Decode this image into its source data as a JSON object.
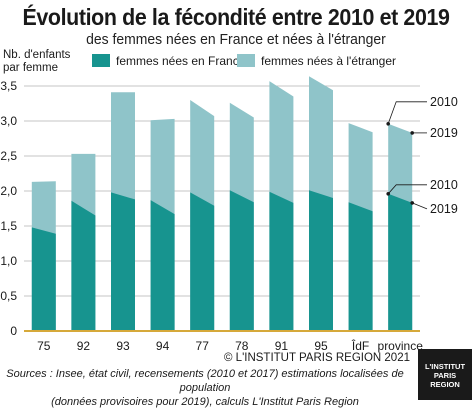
{
  "title": "Évolution de la fécondité entre 2010 et 2019",
  "subtitle": "des femmes nées en France et nées à l'étranger",
  "copyright": "© L'INSTITUT PARIS REGION 2021",
  "sources_line1": "Sources : Insee, état civil, recensements (2010 et 2017) estimations localisées de population",
  "sources_line2": "(données provisoires pour 2019), calculs L'Institut Paris Region",
  "logo": {
    "line1": "L'INSTITUT",
    "line2": "PARIS",
    "line3": "REGION"
  },
  "colors": {
    "france": "#17948f",
    "etranger": "#8fc4c9",
    "axis": "#d6a93a",
    "grid": "#b0b0b0"
  },
  "chart_data": {
    "type": "bar",
    "stacked": true,
    "ylabel": "Nb. d'enfants par femme",
    "ylim": [
      0,
      3.5
    ],
    "yticks": [
      0,
      0.5,
      1.0,
      1.5,
      2.0,
      2.5,
      3.0,
      3.5
    ],
    "ytick_labels": [
      "0",
      "0,5",
      "1,0",
      "1,5",
      "2,0",
      "2,5",
      "3,0",
      "3,5"
    ],
    "grid": true,
    "legend_position": "top",
    "categories": [
      "75",
      "92",
      "93",
      "94",
      "77",
      "78",
      "91",
      "95",
      "ÎdF",
      "province"
    ],
    "series": [
      {
        "name": "femmes nées en France",
        "values_2010": [
          1.48,
          1.86,
          1.98,
          1.87,
          1.98,
          2.01,
          1.99,
          2.01,
          1.84,
          1.96
        ],
        "values_2019": [
          1.39,
          1.65,
          1.88,
          1.67,
          1.79,
          1.84,
          1.83,
          1.9,
          1.71,
          1.83
        ]
      },
      {
        "name": "femmes nées à l'étranger",
        "values_2010": [
          2.13,
          2.53,
          3.41,
          3.01,
          3.3,
          3.26,
          3.57,
          3.64,
          2.97,
          2.96
        ],
        "values_2019": [
          2.14,
          2.53,
          3.41,
          3.03,
          3.07,
          3.05,
          3.35,
          3.44,
          2.84,
          2.83
        ]
      }
    ],
    "annotations": [
      "2010",
      "2019",
      "2010",
      "2019"
    ]
  }
}
